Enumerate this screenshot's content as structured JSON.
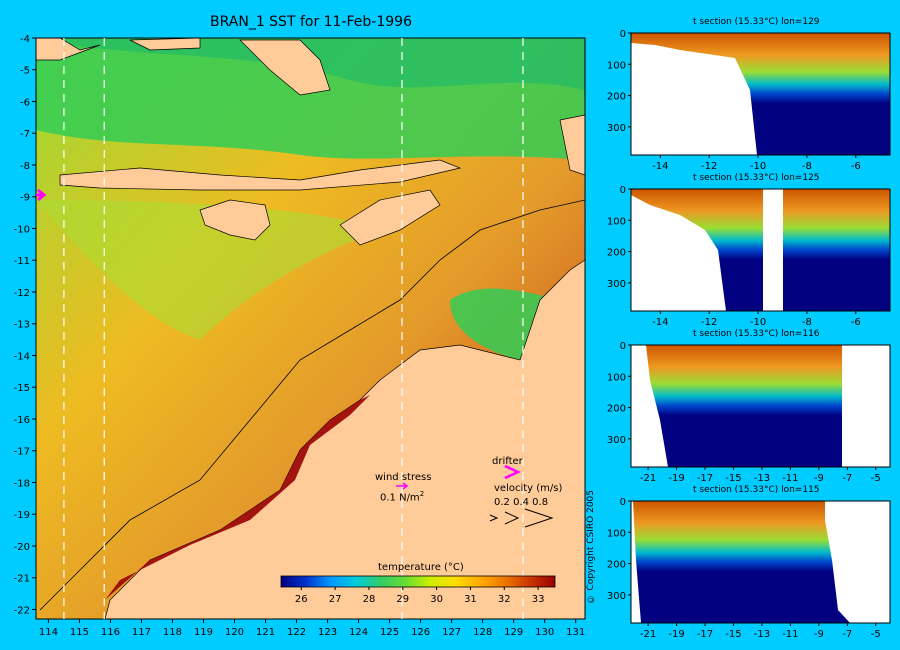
{
  "title": "BRAN_1 SST for 11-Feb-1996",
  "copyright": "© Copyright CSIRO 2005",
  "colors": {
    "background": "#00ccff",
    "land": "#ffcc99",
    "white": "#ffffff",
    "deep_blue": "#000080",
    "velocity_arrow": "#ff00ff"
  },
  "legend": {
    "wind_label": "wind stress",
    "wind_scale": "0.1 N/m",
    "wind_scale_sup": "2",
    "drifter_label": "drifter",
    "velocity_label": "velocity (m/s)",
    "velocity_scale": "0.2 0.4 0.8"
  },
  "chart_data": [
    {
      "type": "heatmap",
      "title": "BRAN_1 SST for 11-Feb-1996",
      "x_ticks": [
        "114",
        "115",
        "116",
        "117",
        "118",
        "119",
        "120",
        "121",
        "122",
        "123",
        "124",
        "125",
        "126",
        "127",
        "128",
        "129",
        "130",
        "131"
      ],
      "y_ticks": [
        "-4",
        "-5",
        "-6",
        "-7",
        "-8",
        "-9",
        "-10",
        "-11",
        "-12",
        "-13",
        "-14",
        "-15",
        "-16",
        "-17",
        "-18",
        "-19",
        "-20",
        "-21",
        "-22"
      ],
      "xlim": [
        113.6,
        131.3
      ],
      "ylim": [
        -22.3,
        -4
      ],
      "section_longitudes": [
        114.5,
        115.8,
        125.4,
        129.3
      ],
      "colorbar_label": "temperature (°C)",
      "colorbar_ticks": [
        "26",
        "27",
        "28",
        "29",
        "30",
        "31",
        "32",
        "33"
      ],
      "colorbar_range": [
        25.4,
        33.5
      ],
      "colorbar_colors": [
        "#000080",
        "#0033cc",
        "#0099ff",
        "#00ccdd",
        "#33cc66",
        "#66dd33",
        "#ccee00",
        "#ffdd00",
        "#ffaa00",
        "#ee7700",
        "#cc3300",
        "#990000"
      ]
    },
    {
      "type": "heatmap",
      "title": "t section (15.33°C) lon=129",
      "x_ticks": [
        "-14",
        "-12",
        "-10",
        "-8",
        "-6"
      ],
      "xlim": [
        -15.2,
        -4.6
      ],
      "y_ticks": [
        "0",
        "100",
        "200",
        "300"
      ],
      "ylim": [
        0,
        390
      ]
    },
    {
      "type": "heatmap",
      "title": "t section (15.33°C) lon=125",
      "x_ticks": [
        "-14",
        "-12",
        "-10",
        "-8",
        "-6"
      ],
      "xlim": [
        -15.2,
        -4.6
      ],
      "y_ticks": [
        "0",
        "100",
        "200",
        "300"
      ],
      "ylim": [
        0,
        390
      ]
    },
    {
      "type": "heatmap",
      "title": "t section (15.33°C) lon=116",
      "x_ticks": [
        "-21",
        "-19",
        "-17",
        "-15",
        "-13",
        "-11",
        "-9",
        "-7",
        "-5"
      ],
      "xlim": [
        -22.2,
        -4
      ],
      "y_ticks": [
        "0",
        "100",
        "200",
        "300"
      ],
      "ylim": [
        0,
        390
      ]
    },
    {
      "type": "heatmap",
      "title": "t section (15.33°C) lon=115",
      "x_ticks": [
        "-21",
        "-19",
        "-17",
        "-15",
        "-13",
        "-11",
        "-9",
        "-7",
        "-5"
      ],
      "xlim": [
        -22.2,
        -4
      ],
      "y_ticks": [
        "0",
        "100",
        "200",
        "300"
      ],
      "ylim": [
        0,
        390
      ]
    }
  ]
}
